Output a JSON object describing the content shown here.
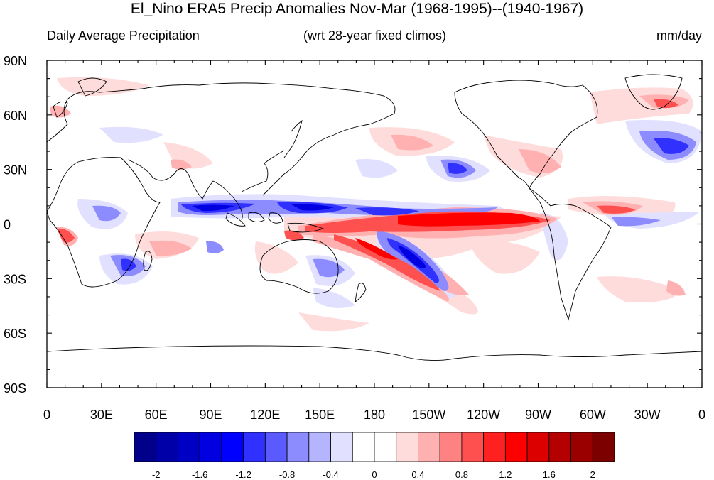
{
  "title": "El_Nino ERA5 Precip Anomalies Nov-Mar (1968-1995)--(1940-1967)",
  "subtitle_left": "Daily Average Precipitation",
  "subtitle_center": "(wrt 28-year fixed climos)",
  "subtitle_right": "mm/day",
  "lat_labels": [
    "90N",
    "60N",
    "30N",
    "0",
    "30S",
    "60S",
    "90S"
  ],
  "lon_labels": [
    "0",
    "30E",
    "60E",
    "90E",
    "120E",
    "150E",
    "180",
    "150W",
    "120W",
    "90W",
    "60W",
    "30W",
    "0"
  ],
  "colorbar": {
    "colors": [
      "#00008a",
      "#0000a8",
      "#0000c4",
      "#0000e0",
      "#0000ff",
      "#3030ff",
      "#5a5aff",
      "#8c8cff",
      "#b4b4ff",
      "#e1e1ff",
      "#ffffff",
      "#ffffff",
      "#ffdcdc",
      "#ffb0b0",
      "#ff8282",
      "#ff5050",
      "#ff2020",
      "#ff0000",
      "#dc0000",
      "#b40000",
      "#9a0000",
      "#7d0000"
    ],
    "labels": [
      "-2",
      "-1.6",
      "-1.2",
      "-0.8",
      "-0.4",
      "0",
      "0.4",
      "0.8",
      "1.2",
      "1.6",
      "2"
    ]
  }
}
